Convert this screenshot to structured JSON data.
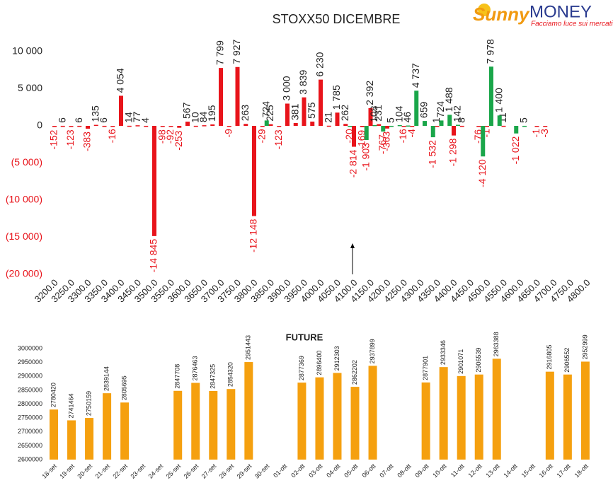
{
  "logo": {
    "brand1": "Sunny",
    "brand2": "MONEY",
    "tagline": "Facciamo luce sui mercati"
  },
  "chart_data": [
    {
      "type": "bar",
      "title": "STOXX50 DICEMBRE",
      "categories": [
        "3200.0",
        null,
        "3250.0",
        null,
        "3300.0",
        null,
        "3350.0",
        null,
        "3400.0",
        null,
        "3450.0",
        null,
        "3500.0",
        null,
        "3550.0",
        null,
        "3600.0",
        null,
        "3650.0",
        null,
        "3700.0",
        null,
        "3750.0",
        null,
        "3800.0",
        null,
        "3850.0",
        null,
        "3900.0",
        null,
        "3950.0",
        null,
        "4000.0",
        null,
        "4050.0",
        null,
        "4100.0",
        null,
        "4150.0",
        null,
        "4200.0",
        null,
        "4250.0",
        null,
        "4300.0",
        null,
        "4350.0",
        null,
        "4400.0",
        null,
        "4450.0",
        null,
        "4500.0",
        null,
        "4550.0",
        null,
        "4600.0",
        null,
        "4650.0",
        null,
        "4700.0",
        null,
        "4750.0",
        null,
        "4800.0"
      ],
      "series": [
        {
          "color": "#e8141b",
          "values": [
            -152,
            6,
            -123,
            6,
            -383,
            135,
            6,
            -16,
            4054,
            14,
            77,
            4,
            -14845,
            -98,
            -92,
            -253,
            567,
            10,
            84,
            195,
            7799,
            -9,
            7927,
            263,
            -12148,
            -29,
            225,
            -123,
            3000,
            381,
            3839,
            575,
            6230,
            21,
            1785,
            262,
            -2814,
            -169,
            2392,
            231,
            -363,
            null,
            -16,
            -4,
            null,
            null,
            1,
            null,
            -1298,
            8,
            null,
            -76,
            -1,
            null,
            11,
            null,
            null,
            null,
            -1,
            -3,
            null,
            null,
            null,
            null,
            null
          ],
          "value_labels": [
            "-152",
            "6",
            "-123",
            "6",
            "-383",
            "135",
            "6",
            "-16",
            "4 054",
            "14",
            "77",
            "4",
            "-14 845",
            "-98",
            "-92",
            "-253",
            "567",
            "10",
            "84",
            "195",
            "7 799",
            "-9",
            "7 927",
            "263",
            "-12 148",
            "-29",
            "225",
            "-123",
            "3 000",
            "381",
            "3 839",
            "575",
            "6 230",
            "21",
            "1 785",
            "262",
            "-2 814",
            "-169",
            "2 392",
            "231",
            "-363",
            null,
            "-16",
            "-4",
            null,
            null,
            "1",
            null,
            "-1 298",
            "8",
            null,
            "-76",
            "-1",
            null,
            "11",
            null,
            null,
            null,
            "-1",
            "-3",
            null,
            null,
            null,
            null,
            null
          ]
        },
        {
          "color": "#1aa64a",
          "values": [
            null,
            null,
            null,
            null,
            null,
            null,
            null,
            null,
            null,
            null,
            null,
            null,
            null,
            null,
            null,
            null,
            null,
            null,
            null,
            null,
            null,
            null,
            null,
            null,
            null,
            724,
            null,
            null,
            null,
            null,
            null,
            null,
            null,
            null,
            null,
            -20,
            null,
            -1903,
            108,
            -767,
            5,
            104,
            46,
            4737,
            659,
            -1532,
            724,
            1488,
            142,
            null,
            null,
            -4120,
            7978,
            1400,
            null,
            -1022,
            5,
            null,
            null,
            null,
            null,
            null,
            null,
            null,
            null
          ],
          "value_labels": [
            null,
            null,
            null,
            null,
            null,
            null,
            null,
            null,
            null,
            null,
            null,
            null,
            null,
            null,
            null,
            null,
            null,
            null,
            null,
            null,
            null,
            null,
            null,
            null,
            null,
            "724",
            null,
            null,
            null,
            null,
            null,
            null,
            null,
            null,
            null,
            "-20",
            null,
            "-1 903",
            "108",
            "-767",
            "5",
            "104",
            "46",
            "4 737",
            "659",
            "-1 532",
            "724",
            "1 488",
            "142",
            null,
            null,
            "-4 120",
            "7 978",
            "1 400",
            null,
            "-1 022",
            "5",
            null,
            null,
            null,
            null,
            null,
            null,
            null,
            null
          ]
        }
      ],
      "ylim": [
        -20000,
        12000
      ],
      "yticks": [
        {
          "value": -20000,
          "label": "(20 000)"
        },
        {
          "value": -15000,
          "label": "(15 000)"
        },
        {
          "value": -10000,
          "label": "(10 000)"
        },
        {
          "value": -5000,
          "label": "(5 000)"
        },
        0,
        {
          "value": 5000,
          "label": "5 000"
        },
        {
          "value": 10000,
          "label": "10 000"
        }
      ],
      "grid": false
    },
    {
      "type": "bar",
      "title": "FUTURE",
      "categories": [
        "18-set",
        "19-set",
        "20-set",
        "21-set",
        "22-set",
        "23-set",
        "24-set",
        "25-set",
        "26-set",
        "27-set",
        "28-set",
        "29-set",
        "30-set",
        "01-ott",
        "02-ott",
        "03-ott",
        "04-ott",
        "05-ott",
        "06-ott",
        "07-ott",
        "08-ott",
        "09-ott",
        "10-ott",
        "11-ott",
        "12-ott",
        "13-ott",
        "14-ott",
        "15-ott",
        "16-ott",
        "17-ott",
        "18-ott"
      ],
      "values": [
        2780420,
        2741464,
        2750159,
        2839144,
        2805695,
        null,
        null,
        2847708,
        2876463,
        2847325,
        2854320,
        2951443,
        null,
        null,
        2877369,
        2896400,
        2912303,
        2862202,
        2937899,
        null,
        null,
        2877901,
        2933346,
        2901071,
        2906539,
        2963388,
        null,
        null,
        2916805,
        2906552,
        2952999
      ],
      "color": "#f5a00f",
      "ylim": [
        2600000,
        3000000
      ],
      "yticks": [
        2600000,
        2650000,
        2700000,
        2750000,
        2800000,
        2850000,
        2900000,
        2950000,
        3000000
      ],
      "grid": false
    }
  ]
}
